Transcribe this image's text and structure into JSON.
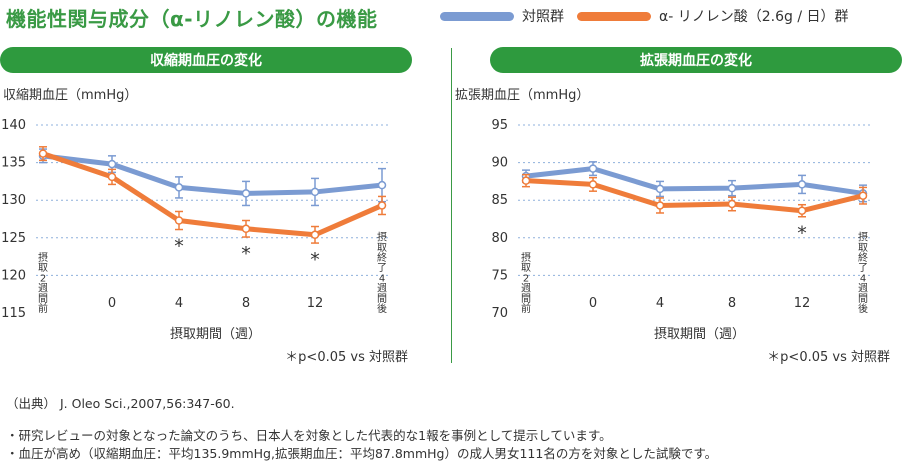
{
  "page_title": "機能性関与成分（α-リノレン酸）の機能",
  "legend": [
    {
      "label": "対照群",
      "color": "#7b9bd2"
    },
    {
      "label": "α- リノレン酸（2.6g / 日）群",
      "color": "#ef7c3a"
    }
  ],
  "colors": {
    "accent": "#2e9a3e",
    "control": "#7b9bd2",
    "treatment": "#ef7c3a"
  },
  "panels": [
    {
      "header": "収縮期血圧の変化",
      "significance_note": "＊p<0.05 vs 対照群"
    },
    {
      "header": "拡張期血圧の変化",
      "significance_note": "＊p<0.05 vs 対照群"
    }
  ],
  "chart_data": [
    {
      "type": "line",
      "title": "収縮期血圧の変化",
      "ylabel": "収縮期血圧（mmHg）",
      "xlabel": "摂取期間（週）",
      "ylim": [
        115,
        140
      ],
      "yticks": [
        115,
        120,
        125,
        130,
        135,
        140
      ],
      "categories": [
        "摂取2週間前",
        "0",
        "4",
        "8",
        "12",
        "摂取終了4週間後"
      ],
      "series": [
        {
          "name": "対照群",
          "values": [
            135.9,
            134.8,
            131.7,
            130.9,
            131.1,
            132.0
          ],
          "errors": [
            0.9,
            1.1,
            1.4,
            1.6,
            1.8,
            2.2
          ]
        },
        {
          "name": "α- リノレン酸（2.6g / 日）群",
          "values": [
            136.2,
            133.1,
            127.3,
            126.2,
            125.4,
            129.3
          ],
          "errors": [
            0.9,
            1.0,
            1.2,
            1.1,
            1.1,
            1.2
          ]
        }
      ],
      "significant": [
        "4",
        "8",
        "12"
      ],
      "grid": true
    },
    {
      "type": "line",
      "title": "拡張期血圧の変化",
      "ylabel": "拡張期血圧（mmHg）",
      "xlabel": "摂取期間（週）",
      "ylim": [
        70,
        95
      ],
      "yticks": [
        70,
        75,
        80,
        85,
        90,
        95
      ],
      "categories": [
        "摂取2週間前",
        "0",
        "4",
        "8",
        "12",
        "摂取終了4週間後"
      ],
      "series": [
        {
          "name": "対照群",
          "values": [
            88.2,
            89.2,
            86.5,
            86.6,
            87.1,
            85.9
          ],
          "errors": [
            0.8,
            0.9,
            1.0,
            1.0,
            1.2,
            1.1
          ]
        },
        {
          "name": "α- リノレン酸（2.6g / 日）群",
          "values": [
            87.6,
            87.1,
            84.3,
            84.5,
            83.6,
            85.6
          ],
          "errors": [
            0.8,
            0.9,
            1.0,
            0.9,
            0.8,
            1.1
          ]
        }
      ],
      "significant": [
        "12"
      ],
      "grid": true
    }
  ],
  "footer": {
    "source": "（出典） J. Oleo Sci.,2007,56:347-60.",
    "note1": "・研究レビューの対象となった論文のうち、日本人を対象とした代表的な1報を事例として提示しています。",
    "note2": "・血圧が高め（収縮期血圧：平均135.9mmHg,拡張期血圧：平均87.8mmHg）の成人男女111名の方を対象とした試験です。"
  }
}
